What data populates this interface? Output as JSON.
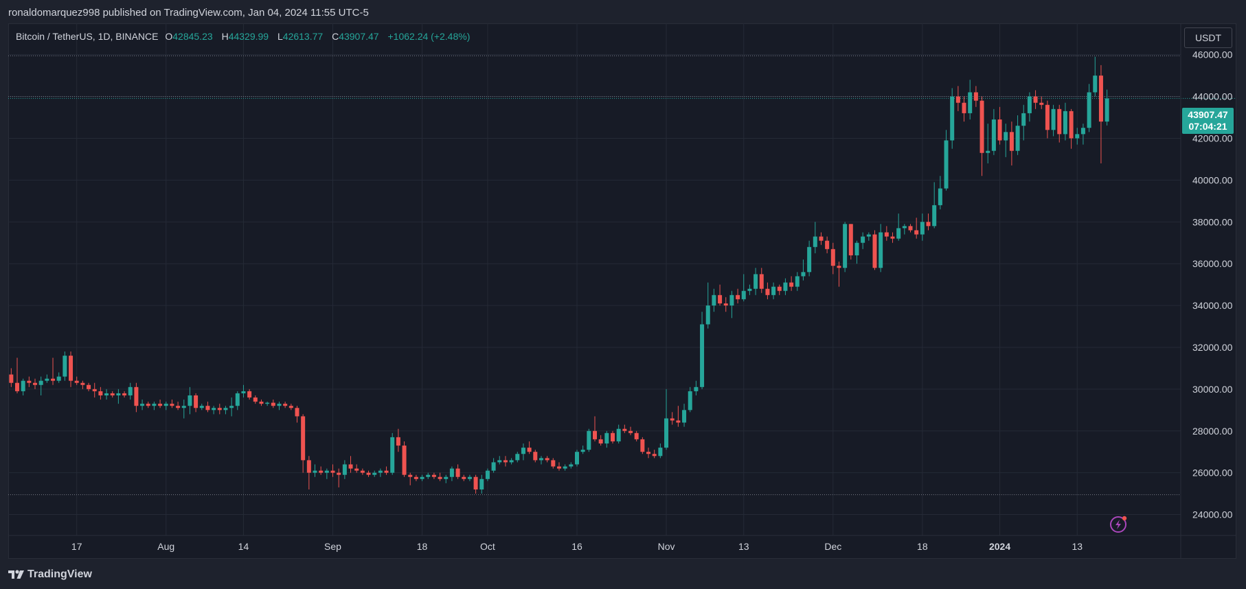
{
  "header": {
    "published_text": "ronaldomarquez998 published on TradingView.com, Jan 04, 2024 11:55 UTC-5"
  },
  "legend": {
    "symbol": "Bitcoin / TetherUS, 1D, BINANCE",
    "open_label": "O",
    "open_value": "42845.23",
    "high_label": "H",
    "high_value": "44329.99",
    "low_label": "L",
    "low_value": "42613.77",
    "close_label": "C",
    "close_value": "43907.47",
    "change": "+1062.24 (+2.48%)"
  },
  "currency_button": "USDT",
  "price_badge": {
    "price": "43907.47",
    "countdown": "07:04:21"
  },
  "footer": {
    "brand": "TradingView"
  },
  "colors": {
    "up": "#26a69a",
    "down": "#ef5350",
    "background": "#171b26",
    "grid": "#252a36",
    "accent": "#e040fb"
  },
  "icons": {
    "logo": "tradingview-logo-icon",
    "bolt": "lightning-bolt-icon"
  },
  "chart_data": {
    "type": "candlestick",
    "title": "Bitcoin / TetherUS, 1D, BINANCE",
    "ylim": [
      23000,
      47500
    ],
    "y_ticks": [
      "24000.00",
      "26000.00",
      "28000.00",
      "30000.00",
      "32000.00",
      "34000.00",
      "36000.00",
      "38000.00",
      "40000.00",
      "42000.00",
      "44000.00",
      "46000.00"
    ],
    "y_tick_values": [
      24000,
      26000,
      28000,
      30000,
      32000,
      34000,
      36000,
      38000,
      40000,
      42000,
      44000,
      46000
    ],
    "x_ticks": [
      "17",
      "Aug",
      "14",
      "Sep",
      "18",
      "Oct",
      "16",
      "Nov",
      "13",
      "Dec",
      "18",
      "2024",
      "13"
    ],
    "x_tick_days": [
      11,
      26,
      39,
      54,
      69,
      80,
      95,
      110,
      123,
      138,
      153,
      166,
      179
    ],
    "horizontal_levels": [
      45950,
      44000,
      24950
    ],
    "candles": [
      [
        30700,
        31000,
        30100,
        30300
      ],
      [
        30300,
        31500,
        29800,
        29900
      ],
      [
        29900,
        30500,
        29700,
        30400
      ],
      [
        30400,
        30600,
        30100,
        30300
      ],
      [
        30300,
        30500,
        30000,
        30200
      ],
      [
        30200,
        30600,
        29700,
        30400
      ],
      [
        30400,
        30700,
        30300,
        30500
      ],
      [
        30500,
        31500,
        30200,
        30400
      ],
      [
        30400,
        30800,
        30300,
        30600
      ],
      [
        30600,
        31800,
        30400,
        31600
      ],
      [
        31600,
        31800,
        30100,
        30400
      ],
      [
        30400,
        30600,
        30200,
        30300
      ],
      [
        30300,
        30400,
        30000,
        30200
      ],
      [
        30200,
        30300,
        29900,
        30000
      ],
      [
        30000,
        30300,
        29600,
        29900
      ],
      [
        29900,
        30100,
        29500,
        29700
      ],
      [
        29700,
        30000,
        29500,
        29800
      ],
      [
        29800,
        29900,
        29600,
        29700
      ],
      [
        29700,
        30000,
        29300,
        29800
      ],
      [
        29800,
        29900,
        29600,
        29700
      ],
      [
        29700,
        30300,
        29500,
        30100
      ],
      [
        30100,
        30300,
        28900,
        29200
      ],
      [
        29200,
        29500,
        29000,
        29300
      ],
      [
        29300,
        29400,
        29100,
        29200
      ],
      [
        29200,
        29400,
        29000,
        29300
      ],
      [
        29300,
        29500,
        29100,
        29200
      ],
      [
        29200,
        29400,
        29000,
        29300
      ],
      [
        29300,
        29500,
        29100,
        29200
      ],
      [
        29200,
        29400,
        29000,
        29100
      ],
      [
        29100,
        29500,
        28600,
        29200
      ],
      [
        29200,
        30100,
        28800,
        29700
      ],
      [
        29700,
        29800,
        28900,
        29100
      ],
      [
        29100,
        29300,
        29000,
        29200
      ],
      [
        29200,
        29400,
        28900,
        29000
      ],
      [
        29000,
        29200,
        28800,
        29100
      ],
      [
        29100,
        29300,
        28800,
        29000
      ],
      [
        29000,
        29200,
        28800,
        29100
      ],
      [
        29100,
        29600,
        28700,
        29200
      ],
      [
        29200,
        29900,
        29000,
        29800
      ],
      [
        29800,
        30200,
        29600,
        29900
      ],
      [
        29900,
        30000,
        29500,
        29600
      ],
      [
        29600,
        29700,
        29300,
        29400
      ],
      [
        29400,
        29500,
        29200,
        29300
      ],
      [
        29300,
        29400,
        29200,
        29350
      ],
      [
        29350,
        29500,
        29100,
        29200
      ],
      [
        29200,
        29400,
        29000,
        29300
      ],
      [
        29300,
        29400,
        29100,
        29200
      ],
      [
        29200,
        29300,
        29000,
        29100
      ],
      [
        29100,
        29200,
        28400,
        28700
      ],
      [
        28700,
        28800,
        26000,
        26600
      ],
      [
        26600,
        26800,
        25200,
        26000
      ],
      [
        26000,
        26400,
        25800,
        26100
      ],
      [
        26100,
        26300,
        25900,
        26000
      ],
      [
        26000,
        26200,
        25700,
        26100
      ],
      [
        26100,
        26400,
        25800,
        26000
      ],
      [
        26000,
        26200,
        25300,
        25900
      ],
      [
        25900,
        26600,
        25700,
        26400
      ],
      [
        26400,
        26800,
        26000,
        26200
      ],
      [
        26200,
        26400,
        26000,
        26100
      ],
      [
        26100,
        26200,
        25900,
        26000
      ],
      [
        26000,
        26100,
        25800,
        25900
      ],
      [
        25900,
        26100,
        25800,
        26000
      ],
      [
        26000,
        26200,
        25800,
        26100
      ],
      [
        26100,
        26300,
        25900,
        26000
      ],
      [
        26000,
        27900,
        25900,
        27700
      ],
      [
        27700,
        28100,
        27000,
        27300
      ],
      [
        27300,
        27500,
        25800,
        25900
      ],
      [
        25900,
        26000,
        25400,
        25800
      ],
      [
        25800,
        25900,
        25600,
        25700
      ],
      [
        25700,
        25900,
        25600,
        25800
      ],
      [
        25800,
        26000,
        25700,
        25900
      ],
      [
        25900,
        26000,
        25700,
        25800
      ],
      [
        25800,
        26000,
        25600,
        25700
      ],
      [
        25700,
        25900,
        25500,
        25800
      ],
      [
        25800,
        26300,
        25600,
        26200
      ],
      [
        26200,
        26400,
        25700,
        25800
      ],
      [
        25800,
        25900,
        25600,
        25700
      ],
      [
        25700,
        25900,
        25600,
        25800
      ],
      [
        25800,
        25900,
        25000,
        25200
      ],
      [
        25200,
        25900,
        25000,
        25700
      ],
      [
        25700,
        26200,
        25600,
        26100
      ],
      [
        26100,
        26700,
        26000,
        26500
      ],
      [
        26500,
        26800,
        26400,
        26600
      ],
      [
        26600,
        26800,
        26300,
        26500
      ],
      [
        26500,
        26700,
        26400,
        26600
      ],
      [
        26600,
        27000,
        26500,
        26900
      ],
      [
        26900,
        27400,
        26600,
        27200
      ],
      [
        27200,
        27500,
        26900,
        27000
      ],
      [
        27000,
        27100,
        26500,
        26600
      ],
      [
        26600,
        26800,
        26400,
        26700
      ],
      [
        26700,
        26800,
        26500,
        26600
      ],
      [
        26600,
        26700,
        26200,
        26300
      ],
      [
        26300,
        26500,
        26100,
        26200
      ],
      [
        26200,
        26400,
        26100,
        26300
      ],
      [
        26300,
        26500,
        26200,
        26400
      ],
      [
        26400,
        27100,
        26300,
        27000
      ],
      [
        27000,
        27300,
        26900,
        27100
      ],
      [
        27100,
        28100,
        27000,
        28000
      ],
      [
        28000,
        28700,
        27500,
        27600
      ],
      [
        27600,
        27800,
        27300,
        27400
      ],
      [
        27400,
        28000,
        27200,
        27900
      ],
      [
        27900,
        28000,
        27400,
        27500
      ],
      [
        27500,
        28300,
        27400,
        28100
      ],
      [
        28100,
        28300,
        27900,
        28000
      ],
      [
        28000,
        28200,
        27800,
        27900
      ],
      [
        27900,
        28000,
        27500,
        27600
      ],
      [
        27600,
        27700,
        26900,
        27000
      ],
      [
        27000,
        27200,
        26700,
        26900
      ],
      [
        26900,
        27100,
        26700,
        26800
      ],
      [
        26800,
        27400,
        26700,
        27200
      ],
      [
        27200,
        30000,
        27100,
        28600
      ],
      [
        28600,
        28900,
        28300,
        28500
      ],
      [
        28500,
        29200,
        28200,
        28400
      ],
      [
        28400,
        29300,
        28200,
        29000
      ],
      [
        29000,
        30100,
        28900,
        29900
      ],
      [
        29900,
        30400,
        29700,
        30100
      ],
      [
        30100,
        33700,
        30000,
        33100
      ],
      [
        33100,
        35100,
        32900,
        34000
      ],
      [
        34000,
        34800,
        33700,
        34500
      ],
      [
        34500,
        35000,
        34000,
        34100
      ],
      [
        34100,
        34400,
        33700,
        34000
      ],
      [
        34000,
        34700,
        33400,
        34500
      ],
      [
        34500,
        34800,
        34100,
        34300
      ],
      [
        34300,
        35500,
        34200,
        34700
      ],
      [
        34700,
        35000,
        34500,
        34800
      ],
      [
        34800,
        35800,
        34500,
        35500
      ],
      [
        35500,
        35800,
        34600,
        34800
      ],
      [
        34800,
        35100,
        34300,
        34500
      ],
      [
        34500,
        35100,
        34300,
        34900
      ],
      [
        34900,
        35000,
        34500,
        34700
      ],
      [
        34700,
        35300,
        34500,
        35100
      ],
      [
        35100,
        35400,
        34700,
        34900
      ],
      [
        34900,
        35600,
        34700,
        35400
      ],
      [
        35400,
        36200,
        35200,
        35600
      ],
      [
        35600,
        37100,
        35400,
        36800
      ],
      [
        36800,
        38000,
        36500,
        37300
      ],
      [
        37300,
        37500,
        36900,
        37100
      ],
      [
        37100,
        37300,
        36500,
        36700
      ],
      [
        36700,
        37000,
        35500,
        35900
      ],
      [
        35900,
        36100,
        34900,
        35800
      ],
      [
        35800,
        38000,
        35600,
        37900
      ],
      [
        37900,
        37900,
        36200,
        36400
      ],
      [
        36400,
        37100,
        36000,
        37000
      ],
      [
        37000,
        37500,
        36700,
        37300
      ],
      [
        37300,
        37500,
        37100,
        37400
      ],
      [
        37400,
        37600,
        35700,
        35800
      ],
      [
        35800,
        37900,
        35600,
        37500
      ],
      [
        37500,
        37800,
        37100,
        37300
      ],
      [
        37300,
        37500,
        37000,
        37200
      ],
      [
        37200,
        38400,
        37100,
        37700
      ],
      [
        37700,
        37900,
        37400,
        37800
      ],
      [
        37800,
        37900,
        37500,
        37600
      ],
      [
        37600,
        38200,
        37200,
        37400
      ],
      [
        37400,
        38400,
        37100,
        38000
      ],
      [
        38000,
        38400,
        37600,
        37800
      ],
      [
        37800,
        39900,
        37700,
        38800
      ],
      [
        38800,
        40200,
        38600,
        39600
      ],
      [
        39600,
        42400,
        39500,
        41900
      ],
      [
        41900,
        44400,
        41500,
        44000
      ],
      [
        44000,
        44500,
        43300,
        43700
      ],
      [
        43700,
        44000,
        42800,
        43200
      ],
      [
        43200,
        44800,
        42900,
        44200
      ],
      [
        44200,
        44500,
        43500,
        43800
      ],
      [
        43800,
        44000,
        40200,
        41300
      ],
      [
        41300,
        42700,
        40800,
        41400
      ],
      [
        41400,
        43400,
        41200,
        42900
      ],
      [
        42900,
        43500,
        41700,
        41900
      ],
      [
        41900,
        42700,
        41100,
        42300
      ],
      [
        42300,
        42800,
        40700,
        41400
      ],
      [
        41400,
        43100,
        41200,
        42600
      ],
      [
        42600,
        43600,
        41900,
        43200
      ],
      [
        43200,
        44200,
        42800,
        44000
      ],
      [
        44000,
        44300,
        43400,
        43700
      ],
      [
        43700,
        44000,
        43400,
        43600
      ],
      [
        43600,
        43800,
        42000,
        42400
      ],
      [
        42400,
        43600,
        42100,
        43400
      ],
      [
        43400,
        43600,
        41800,
        42200
      ],
      [
        42200,
        43700,
        41900,
        43300
      ],
      [
        43300,
        43400,
        41500,
        42000
      ],
      [
        42000,
        42500,
        41700,
        42200
      ],
      [
        42200,
        42700,
        41700,
        42500
      ],
      [
        42500,
        44600,
        42300,
        44200
      ],
      [
        44200,
        45900,
        44000,
        45000
      ],
      [
        45000,
        45500,
        40800,
        42800
      ],
      [
        42800,
        44330,
        42614,
        43907
      ]
    ]
  }
}
